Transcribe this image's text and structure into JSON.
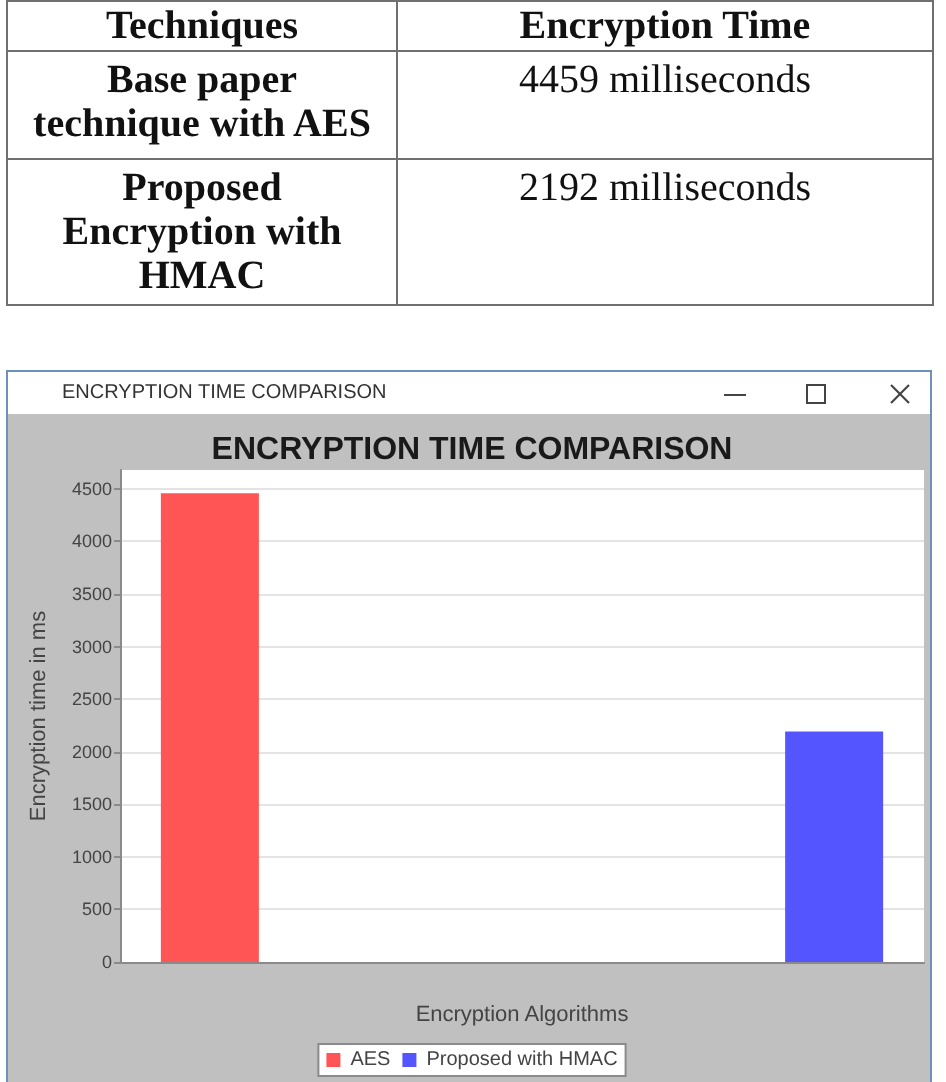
{
  "chart_data": [
    {
      "type": "other",
      "xlabel": "Techniques",
      "ylabel": "Encryption Time",
      "categories": [
        "Base paper technique with AES",
        "Proposed Encryption with HMAC"
      ],
      "value_labels": [
        "4459 milliseconds",
        "2192 milliseconds"
      ]
    },
    {
      "type": "bar",
      "title": "ENCRYPTION TIME COMPARISON",
      "xlabel": "Encryption Algorithms",
      "ylabel": "Encryption time in ms",
      "annotations": [
        "ENCRYPTION TIME COMPARISON"
      ],
      "categories": [
        null
      ],
      "series": [
        {
          "name": "AES",
          "color": "#ff5555",
          "values": [
            4459
          ]
        },
        {
          "name": "Proposed with HMAC",
          "color": "#5555ff",
          "values": [
            2192
          ]
        }
      ],
      "ylim": [
        0,
        4680
      ],
      "yticks": [
        0,
        500,
        1000,
        1500,
        2000,
        2500,
        3000,
        3500,
        4000,
        4500
      ],
      "grid": "y",
      "legend": "bottom"
    }
  ]
}
